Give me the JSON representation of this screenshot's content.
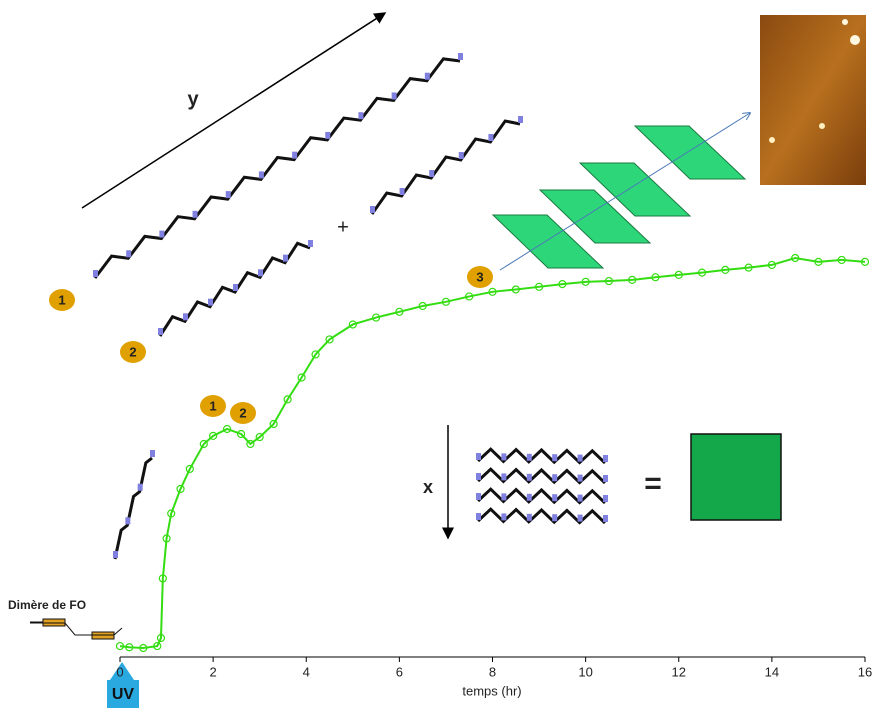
{
  "chart_data": {
    "type": "line",
    "x_label": "temps (hr)",
    "xlim": [
      0,
      16
    ],
    "xticks": [
      0,
      2,
      4,
      6,
      8,
      10,
      12,
      14,
      16
    ],
    "series": [
      {
        "color": "#33dd11",
        "x": [
          0,
          0.2,
          0.5,
          0.8,
          0.88,
          0.92,
          1.0,
          1.1,
          1.3,
          1.5,
          1.8,
          2.0,
          2.3,
          2.6,
          2.8,
          3.0,
          3.3,
          3.6,
          3.9,
          4.2,
          4.5,
          5,
          5.5,
          6,
          6.5,
          7,
          7.5,
          8,
          8.5,
          9,
          9.5,
          10,
          10.5,
          11,
          11.5,
          12,
          12.5,
          13,
          13.5,
          14,
          14.5,
          15,
          15.5,
          16
        ],
        "values": [
          0,
          -0.3,
          -0.5,
          0,
          2.1,
          17.6,
          28,
          34.5,
          40.9,
          46.1,
          52.6,
          54.7,
          56.5,
          55.2,
          52.6,
          54.4,
          57.8,
          64.2,
          69.9,
          75.9,
          79.8,
          83.7,
          85.5,
          87,
          88.5,
          89.6,
          91,
          92.2,
          92.8,
          93.5,
          94.2,
          94.8,
          95,
          95.3,
          96,
          96.6,
          97.2,
          97.9,
          98.5,
          99.2,
          101,
          100,
          100.5,
          100
        ]
      }
    ],
    "annotations": [
      "y",
      "+",
      "x",
      "=",
      "Dimère de FO",
      "UV",
      "1",
      "2",
      "1",
      "2",
      "3"
    ]
  }
}
